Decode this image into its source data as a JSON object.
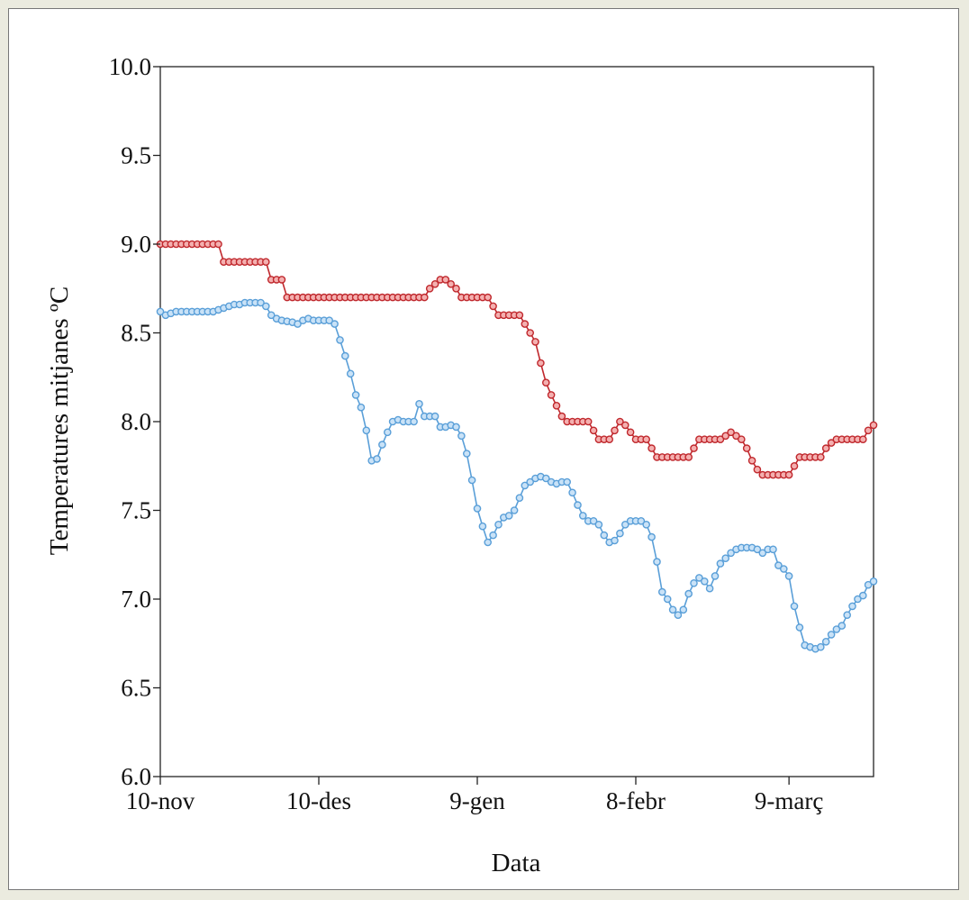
{
  "chart_data": {
    "type": "line",
    "title": "",
    "xlabel": "Data",
    "ylabel": "Temperatures mitjanes ºC",
    "ylim": [
      6.0,
      10.0
    ],
    "y_ticks": [
      "6.0",
      "6.5",
      "7.0",
      "7.5",
      "8.0",
      "8.5",
      "9.0",
      "9.5",
      "10.0"
    ],
    "xlim": [
      "2010-11-10",
      "2011-03-25"
    ],
    "x_ticks": [
      {
        "date": "2010-11-10",
        "label": "10-nov"
      },
      {
        "date": "2010-12-10",
        "label": "10-des"
      },
      {
        "date": "2011-01-09",
        "label": "9-gen"
      },
      {
        "date": "2011-02-08",
        "label": "8-febr"
      },
      {
        "date": "2011-03-09",
        "label": "9-març"
      }
    ],
    "grid": false,
    "legend": "none",
    "series": [
      {
        "color": "#c0282d",
        "marker_fill": "#f4b0b0",
        "points": [
          [
            "2010-11-10",
            9.0
          ],
          [
            "2010-11-21",
            9.0
          ],
          [
            "2010-11-22",
            8.9
          ],
          [
            "2010-11-30",
            8.9
          ],
          [
            "2010-12-01",
            8.8
          ],
          [
            "2010-12-03",
            8.8
          ],
          [
            "2010-12-04",
            8.7
          ],
          [
            "2010-12-30",
            8.7
          ],
          [
            "2010-12-31",
            8.75
          ],
          [
            "2011-01-02",
            8.8
          ],
          [
            "2011-01-03",
            8.8
          ],
          [
            "2011-01-05",
            8.75
          ],
          [
            "2011-01-06",
            8.7
          ],
          [
            "2011-01-11",
            8.7
          ],
          [
            "2011-01-12",
            8.65
          ],
          [
            "2011-01-13",
            8.6
          ],
          [
            "2011-01-17",
            8.6
          ],
          [
            "2011-01-18",
            8.55
          ],
          [
            "2011-01-19",
            8.5
          ],
          [
            "2011-01-20",
            8.45
          ],
          [
            "2011-01-21",
            8.33
          ],
          [
            "2011-01-22",
            8.22
          ],
          [
            "2011-01-23",
            8.15
          ],
          [
            "2011-01-24",
            8.09
          ],
          [
            "2011-01-25",
            8.03
          ],
          [
            "2011-01-26",
            8.0
          ],
          [
            "2011-01-30",
            8.0
          ],
          [
            "2011-01-31",
            7.95
          ],
          [
            "2011-02-01",
            7.9
          ],
          [
            "2011-02-03",
            7.9
          ],
          [
            "2011-02-04",
            7.95
          ],
          [
            "2011-02-05",
            8.0
          ],
          [
            "2011-02-06",
            7.98
          ],
          [
            "2011-02-07",
            7.94
          ],
          [
            "2011-02-08",
            7.9
          ],
          [
            "2011-02-10",
            7.9
          ],
          [
            "2011-02-11",
            7.85
          ],
          [
            "2011-02-12",
            7.8
          ],
          [
            "2011-02-18",
            7.8
          ],
          [
            "2011-02-19",
            7.85
          ],
          [
            "2011-02-20",
            7.9
          ],
          [
            "2011-02-24",
            7.9
          ],
          [
            "2011-02-25",
            7.92
          ],
          [
            "2011-02-26",
            7.94
          ],
          [
            "2011-02-27",
            7.92
          ],
          [
            "2011-02-28",
            7.9
          ],
          [
            "2011-03-01",
            7.85
          ],
          [
            "2011-03-02",
            7.78
          ],
          [
            "2011-03-03",
            7.73
          ],
          [
            "2011-03-04",
            7.7
          ],
          [
            "2011-03-09",
            7.7
          ],
          [
            "2011-03-10",
            7.75
          ],
          [
            "2011-03-11",
            7.8
          ],
          [
            "2011-03-15",
            7.8
          ],
          [
            "2011-03-16",
            7.85
          ],
          [
            "2011-03-17",
            7.88
          ],
          [
            "2011-03-18",
            7.9
          ],
          [
            "2011-03-23",
            7.9
          ],
          [
            "2011-03-24",
            7.95
          ],
          [
            "2011-03-25",
            7.98
          ]
        ]
      },
      {
        "color": "#5a9fd8",
        "marker_fill": "#c9e2f7",
        "points": [
          [
            "2010-11-10",
            8.62
          ],
          [
            "2010-11-11",
            8.6
          ],
          [
            "2010-11-12",
            8.61
          ],
          [
            "2010-11-13",
            8.62
          ],
          [
            "2010-11-20",
            8.62
          ],
          [
            "2010-11-21",
            8.63
          ],
          [
            "2010-11-23",
            8.65
          ],
          [
            "2010-11-24",
            8.66
          ],
          [
            "2010-11-25",
            8.66
          ],
          [
            "2010-11-26",
            8.67
          ],
          [
            "2010-11-29",
            8.67
          ],
          [
            "2010-11-30",
            8.65
          ],
          [
            "2010-12-01",
            8.6
          ],
          [
            "2010-12-02",
            8.58
          ],
          [
            "2010-12-03",
            8.57
          ],
          [
            "2010-12-05",
            8.56
          ],
          [
            "2010-12-06",
            8.55
          ],
          [
            "2010-12-07",
            8.57
          ],
          [
            "2010-12-08",
            8.58
          ],
          [
            "2010-12-09",
            8.57
          ],
          [
            "2010-12-12",
            8.57
          ],
          [
            "2010-12-13",
            8.55
          ],
          [
            "2010-12-14",
            8.46
          ],
          [
            "2010-12-15",
            8.37
          ],
          [
            "2010-12-16",
            8.27
          ],
          [
            "2010-12-17",
            8.15
          ],
          [
            "2010-12-18",
            8.08
          ],
          [
            "2010-12-19",
            7.95
          ],
          [
            "2010-12-20",
            7.78
          ],
          [
            "2010-12-21",
            7.79
          ],
          [
            "2010-12-22",
            7.87
          ],
          [
            "2010-12-23",
            7.94
          ],
          [
            "2010-12-24",
            8.0
          ],
          [
            "2010-12-25",
            8.01
          ],
          [
            "2010-12-26",
            8.0
          ],
          [
            "2010-12-28",
            8.0
          ],
          [
            "2010-12-29",
            8.1
          ],
          [
            "2010-12-30",
            8.03
          ],
          [
            "2011-01-01",
            8.03
          ],
          [
            "2011-01-02",
            7.97
          ],
          [
            "2011-01-03",
            7.97
          ],
          [
            "2011-01-04",
            7.98
          ],
          [
            "2011-01-05",
            7.97
          ],
          [
            "2011-01-06",
            7.92
          ],
          [
            "2011-01-07",
            7.82
          ],
          [
            "2011-01-08",
            7.67
          ],
          [
            "2011-01-09",
            7.51
          ],
          [
            "2011-01-10",
            7.41
          ],
          [
            "2011-01-11",
            7.32
          ],
          [
            "2011-01-12",
            7.36
          ],
          [
            "2011-01-13",
            7.42
          ],
          [
            "2011-01-14",
            7.46
          ],
          [
            "2011-01-15",
            7.47
          ],
          [
            "2011-01-16",
            7.5
          ],
          [
            "2011-01-17",
            7.57
          ],
          [
            "2011-01-18",
            7.64
          ],
          [
            "2011-01-19",
            7.66
          ],
          [
            "2011-01-20",
            7.68
          ],
          [
            "2011-01-21",
            7.69
          ],
          [
            "2011-01-22",
            7.68
          ],
          [
            "2011-01-23",
            7.66
          ],
          [
            "2011-01-24",
            7.65
          ],
          [
            "2011-01-25",
            7.66
          ],
          [
            "2011-01-26",
            7.66
          ],
          [
            "2011-01-27",
            7.6
          ],
          [
            "2011-01-28",
            7.53
          ],
          [
            "2011-01-29",
            7.47
          ],
          [
            "2011-01-30",
            7.44
          ],
          [
            "2011-01-31",
            7.44
          ],
          [
            "2011-02-01",
            7.42
          ],
          [
            "2011-02-02",
            7.36
          ],
          [
            "2011-02-03",
            7.32
          ],
          [
            "2011-02-04",
            7.33
          ],
          [
            "2011-02-05",
            7.37
          ],
          [
            "2011-02-06",
            7.42
          ],
          [
            "2011-02-07",
            7.44
          ],
          [
            "2011-02-08",
            7.44
          ],
          [
            "2011-02-09",
            7.44
          ],
          [
            "2011-02-10",
            7.42
          ],
          [
            "2011-02-11",
            7.35
          ],
          [
            "2011-02-12",
            7.21
          ],
          [
            "2011-02-13",
            7.04
          ],
          [
            "2011-02-14",
            7.0
          ],
          [
            "2011-02-15",
            6.94
          ],
          [
            "2011-02-16",
            6.91
          ],
          [
            "2011-02-17",
            6.94
          ],
          [
            "2011-02-18",
            7.03
          ],
          [
            "2011-02-19",
            7.09
          ],
          [
            "2011-02-20",
            7.12
          ],
          [
            "2011-02-21",
            7.1
          ],
          [
            "2011-02-22",
            7.06
          ],
          [
            "2011-02-23",
            7.13
          ],
          [
            "2011-02-24",
            7.2
          ],
          [
            "2011-02-25",
            7.23
          ],
          [
            "2011-02-26",
            7.26
          ],
          [
            "2011-02-27",
            7.28
          ],
          [
            "2011-02-28",
            7.29
          ],
          [
            "2011-03-01",
            7.29
          ],
          [
            "2011-03-02",
            7.29
          ],
          [
            "2011-03-03",
            7.28
          ],
          [
            "2011-03-04",
            7.26
          ],
          [
            "2011-03-05",
            7.28
          ],
          [
            "2011-03-06",
            7.28
          ],
          [
            "2011-03-07",
            7.19
          ],
          [
            "2011-03-08",
            7.17
          ],
          [
            "2011-03-09",
            7.13
          ],
          [
            "2011-03-10",
            6.96
          ],
          [
            "2011-03-11",
            6.84
          ],
          [
            "2011-03-12",
            6.74
          ],
          [
            "2011-03-13",
            6.73
          ],
          [
            "2011-03-14",
            6.72
          ],
          [
            "2011-03-15",
            6.73
          ],
          [
            "2011-03-16",
            6.76
          ],
          [
            "2011-03-17",
            6.8
          ],
          [
            "2011-03-18",
            6.83
          ],
          [
            "2011-03-19",
            6.85
          ],
          [
            "2011-03-20",
            6.91
          ],
          [
            "2011-03-21",
            6.96
          ],
          [
            "2011-03-22",
            7.0
          ],
          [
            "2011-03-23",
            7.02
          ],
          [
            "2011-03-24",
            7.08
          ],
          [
            "2011-03-25",
            7.1
          ]
        ]
      }
    ]
  }
}
